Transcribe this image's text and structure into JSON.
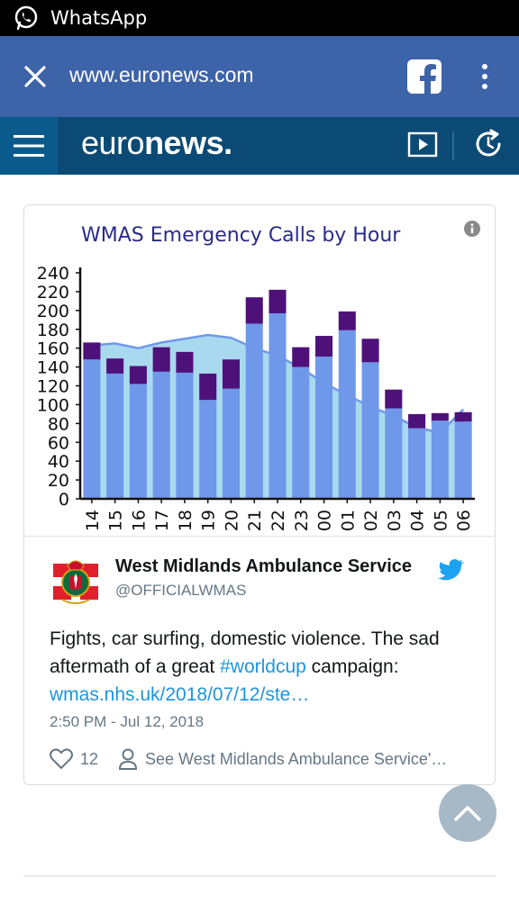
{
  "statusbar": {
    "app_title": "WhatsApp",
    "icon": "whatsapp-icon"
  },
  "browser": {
    "url": "www.euronews.com",
    "close_icon": "close-icon",
    "share_icon": "facebook-icon",
    "menu_icon": "more-vert-icon"
  },
  "site": {
    "logo_light": "euro",
    "logo_bold": "news",
    "logo_dot": "."
  },
  "chart_data": {
    "type": "bar",
    "title": "WMAS Emergency Calls by Hour",
    "categories": [
      "14",
      "15",
      "16",
      "17",
      "18",
      "19",
      "20",
      "21",
      "22",
      "23",
      "00",
      "01",
      "02",
      "03",
      "04",
      "05",
      "06"
    ],
    "series": [
      {
        "values": [
          148,
          133,
          122,
          135,
          134,
          105,
          117,
          186,
          197,
          140,
          151,
          179,
          145,
          96,
          75,
          83,
          82
        ]
      },
      {
        "values": [
          18,
          16,
          19,
          26,
          22,
          28,
          31,
          28,
          25,
          21,
          22,
          20,
          25,
          20,
          15,
          8,
          10
        ]
      },
      {
        "type": "area",
        "values": [
          163,
          165,
          160,
          166,
          170,
          174,
          171,
          160,
          152,
          139,
          123,
          110,
          98,
          88,
          76,
          70,
          95
        ]
      }
    ],
    "ylim": [
      0,
      240
    ],
    "yticks": [
      0,
      20,
      40,
      60,
      80,
      100,
      120,
      140,
      160,
      180,
      200,
      220,
      240
    ],
    "colors": {
      "bar_base": "#6f98ea",
      "bar_top": "#4e117a",
      "area_fill": "#a9d9ee",
      "area_line": "#6f98ea",
      "title": "#2a2a8c"
    }
  },
  "tweet": {
    "author": "West Midlands Ambulance Service",
    "handle": "@OFFICIALWMAS",
    "text_part1": "Fights, car surfing, domestic violence. The sad aftermath of a great ",
    "hashtag": "#worldcup",
    "text_part2": " campaign: ",
    "link": "wmas.nhs.uk/2018/07/12/ste…",
    "timestamp": "2:50 PM - Jul 12, 2018",
    "likes": "12",
    "see_more": "See West Midlands Ambulance Service'…"
  }
}
